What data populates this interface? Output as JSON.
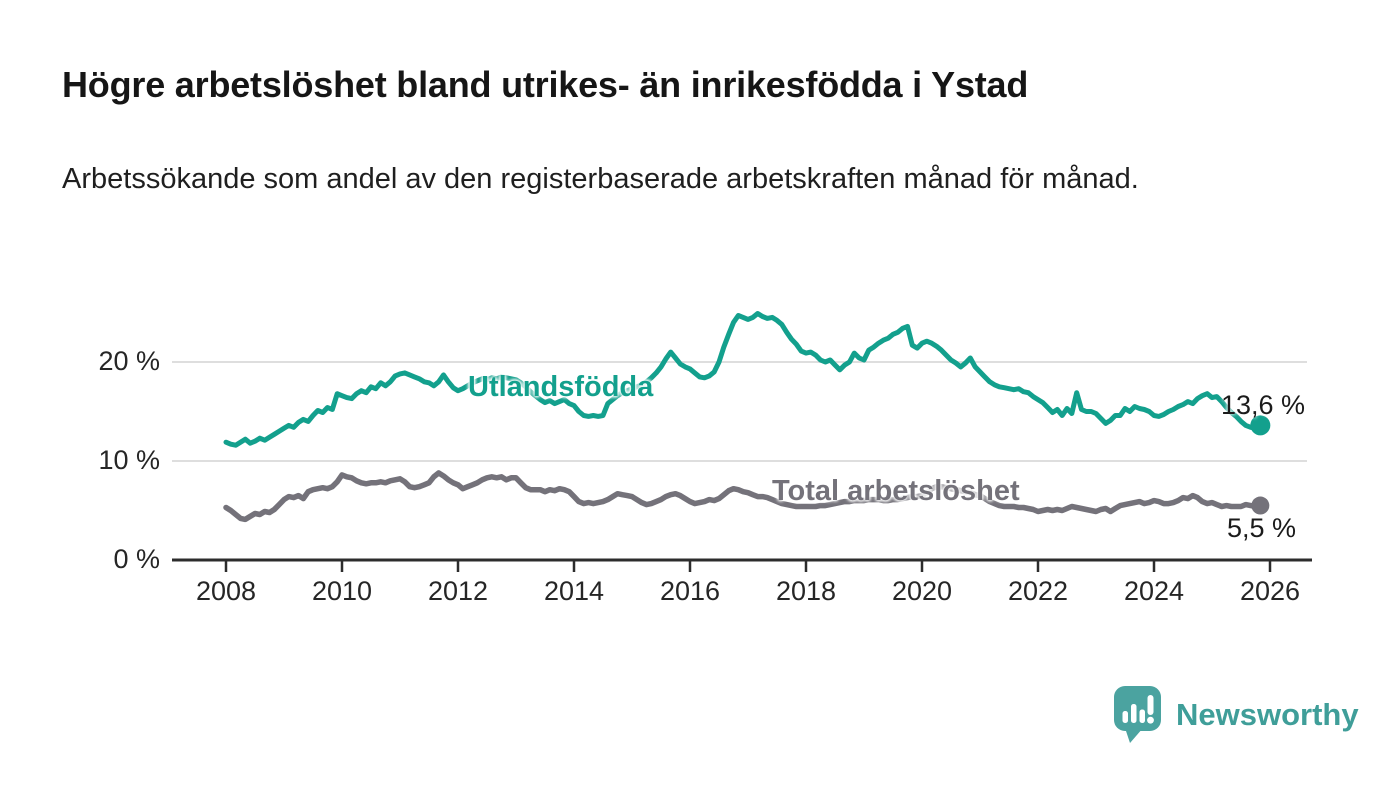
{
  "header": {
    "title": "Högre arbetslöshet bland utrikes- än inrikesfödda i Ystad",
    "subtitle": "Arbetssökande som andel av den registerbaserade arbetskraften månad för månad."
  },
  "branding": {
    "logo_text": "Newsworthy",
    "logo_color": "#4ba3a0",
    "text_color": "#3f9e99"
  },
  "chart_data": {
    "type": "line",
    "title": "Högre arbetslöshet bland utrikes- än inrikesfödda i Ystad",
    "xlabel": "",
    "ylabel": "Arbetssökande som andel av den registerbaserade arbetskraften",
    "grid": true,
    "x_axis": {
      "tick_years": [
        2008,
        2010,
        2012,
        2014,
        2016,
        2018,
        2020,
        2022,
        2024,
        2026
      ],
      "interval": "monthly"
    },
    "y_axis": {
      "tick_values": [
        0,
        10,
        20
      ],
      "suffix": " %",
      "ylim": [
        0,
        27
      ]
    },
    "series": [
      {
        "name": "Utlandsfödda",
        "color": "#13a08d",
        "start_year": 2008,
        "points_per_year": 12,
        "end_label": "13,6 %",
        "end_value": 13.6,
        "values": [
          11.9,
          11.7,
          11.6,
          11.9,
          12.2,
          11.8,
          12.0,
          12.3,
          12.1,
          12.4,
          12.7,
          13.0,
          13.3,
          13.6,
          13.4,
          13.9,
          14.2,
          14.0,
          14.6,
          15.1,
          14.9,
          15.4,
          15.2,
          16.8,
          16.6,
          16.4,
          16.3,
          16.8,
          17.1,
          16.9,
          17.5,
          17.3,
          17.9,
          17.6,
          18.0,
          18.6,
          18.8,
          18.9,
          18.7,
          18.5,
          18.3,
          18.0,
          17.9,
          17.6,
          18.0,
          18.7,
          18.0,
          17.4,
          17.1,
          17.3,
          17.6,
          17.9,
          18.1,
          18.3,
          18.2,
          18.4,
          18.3,
          18.5,
          18.4,
          18.3,
          18.2,
          17.9,
          17.5,
          17.0,
          16.6,
          16.2,
          15.9,
          16.1,
          15.8,
          16.0,
          16.2,
          15.8,
          15.6,
          15.0,
          14.6,
          14.5,
          14.6,
          14.5,
          14.6,
          15.8,
          16.2,
          16.6,
          16.9,
          17.1,
          17.3,
          17.5,
          17.7,
          18.0,
          18.4,
          18.9,
          19.5,
          20.3,
          21.0,
          20.4,
          19.8,
          19.5,
          19.3,
          18.9,
          18.5,
          18.4,
          18.6,
          19.0,
          20.0,
          21.5,
          22.8,
          24.0,
          24.7,
          24.5,
          24.3,
          24.5,
          24.9,
          24.6,
          24.4,
          24.5,
          24.2,
          23.8,
          23.0,
          22.3,
          21.8,
          21.1,
          20.9,
          21.0,
          20.7,
          20.2,
          20.0,
          20.2,
          19.7,
          19.2,
          19.7,
          20.0,
          20.9,
          20.4,
          20.2,
          21.2,
          21.5,
          21.9,
          22.2,
          22.4,
          22.8,
          23.0,
          23.4,
          23.6,
          21.7,
          21.4,
          21.9,
          22.1,
          21.9,
          21.6,
          21.2,
          20.7,
          20.2,
          19.9,
          19.5,
          19.9,
          20.4,
          19.5,
          19.0,
          18.5,
          18.0,
          17.7,
          17.5,
          17.4,
          17.3,
          17.2,
          17.3,
          17.0,
          16.9,
          16.5,
          16.2,
          15.9,
          15.4,
          14.9,
          15.2,
          14.6,
          15.3,
          14.8,
          16.9,
          15.2,
          15.0,
          15.0,
          14.8,
          14.3,
          13.8,
          14.1,
          14.6,
          14.6,
          15.3,
          15.0,
          15.5,
          15.3,
          15.2,
          15.0,
          14.6,
          14.5,
          14.7,
          15.0,
          15.2,
          15.5,
          15.7,
          16.0,
          15.8,
          16.3,
          16.6,
          16.8,
          16.4,
          16.5,
          16.0,
          15.4,
          14.9,
          14.5,
          14.0,
          13.6,
          13.4,
          13.3,
          13.6
        ]
      },
      {
        "name": "Total arbetslöshet",
        "color": "#74727a",
        "start_year": 2008,
        "points_per_year": 12,
        "end_label": "5,5 %",
        "end_value": 5.5,
        "values": [
          5.3,
          5.0,
          4.6,
          4.2,
          4.1,
          4.4,
          4.7,
          4.6,
          4.9,
          4.8,
          5.1,
          5.6,
          6.1,
          6.4,
          6.3,
          6.5,
          6.2,
          6.9,
          7.1,
          7.2,
          7.3,
          7.2,
          7.4,
          7.9,
          8.6,
          8.4,
          8.3,
          8.0,
          7.8,
          7.7,
          7.8,
          7.8,
          7.9,
          7.8,
          8.0,
          8.1,
          8.2,
          7.9,
          7.4,
          7.3,
          7.4,
          7.6,
          7.8,
          8.4,
          8.8,
          8.5,
          8.1,
          7.8,
          7.6,
          7.2,
          7.4,
          7.6,
          7.8,
          8.1,
          8.3,
          8.4,
          8.3,
          8.4,
          8.1,
          8.3,
          8.3,
          7.8,
          7.3,
          7.1,
          7.1,
          7.1,
          6.9,
          7.1,
          7.0,
          7.2,
          7.1,
          6.9,
          6.4,
          5.9,
          5.7,
          5.8,
          5.7,
          5.8,
          5.9,
          6.1,
          6.4,
          6.7,
          6.6,
          6.5,
          6.4,
          6.1,
          5.8,
          5.6,
          5.7,
          5.9,
          6.1,
          6.4,
          6.6,
          6.7,
          6.5,
          6.2,
          5.9,
          5.7,
          5.8,
          5.9,
          6.1,
          6.0,
          6.2,
          6.6,
          7.0,
          7.2,
          7.1,
          6.9,
          6.8,
          6.6,
          6.4,
          6.4,
          6.3,
          6.1,
          5.9,
          5.7,
          5.6,
          5.5,
          5.4,
          5.4,
          5.4,
          5.4,
          5.4,
          5.5,
          5.5,
          5.6,
          5.7,
          5.8,
          5.9,
          5.9,
          6.0,
          6.0,
          6.0,
          6.1,
          6.1,
          6.1,
          6.0,
          6.0,
          6.1,
          6.1,
          6.2,
          6.3,
          6.4,
          6.4,
          6.5,
          6.8,
          7.2,
          7.4,
          7.4,
          7.3,
          7.2,
          7.1,
          7.0,
          6.9,
          6.8,
          6.6,
          6.5,
          6.2,
          5.9,
          5.7,
          5.5,
          5.4,
          5.4,
          5.4,
          5.3,
          5.3,
          5.2,
          5.1,
          4.9,
          5.0,
          5.1,
          5.0,
          5.1,
          5.0,
          5.2,
          5.4,
          5.3,
          5.2,
          5.1,
          5.0,
          4.9,
          5.1,
          5.2,
          4.9,
          5.2,
          5.5,
          5.6,
          5.7,
          5.8,
          5.9,
          5.7,
          5.8,
          6.0,
          5.9,
          5.7,
          5.7,
          5.8,
          6.0,
          6.3,
          6.2,
          6.5,
          6.3,
          5.9,
          5.7,
          5.8,
          5.6,
          5.4,
          5.5,
          5.4,
          5.4,
          5.4,
          5.6,
          5.5,
          5.4,
          5.5
        ]
      }
    ]
  }
}
